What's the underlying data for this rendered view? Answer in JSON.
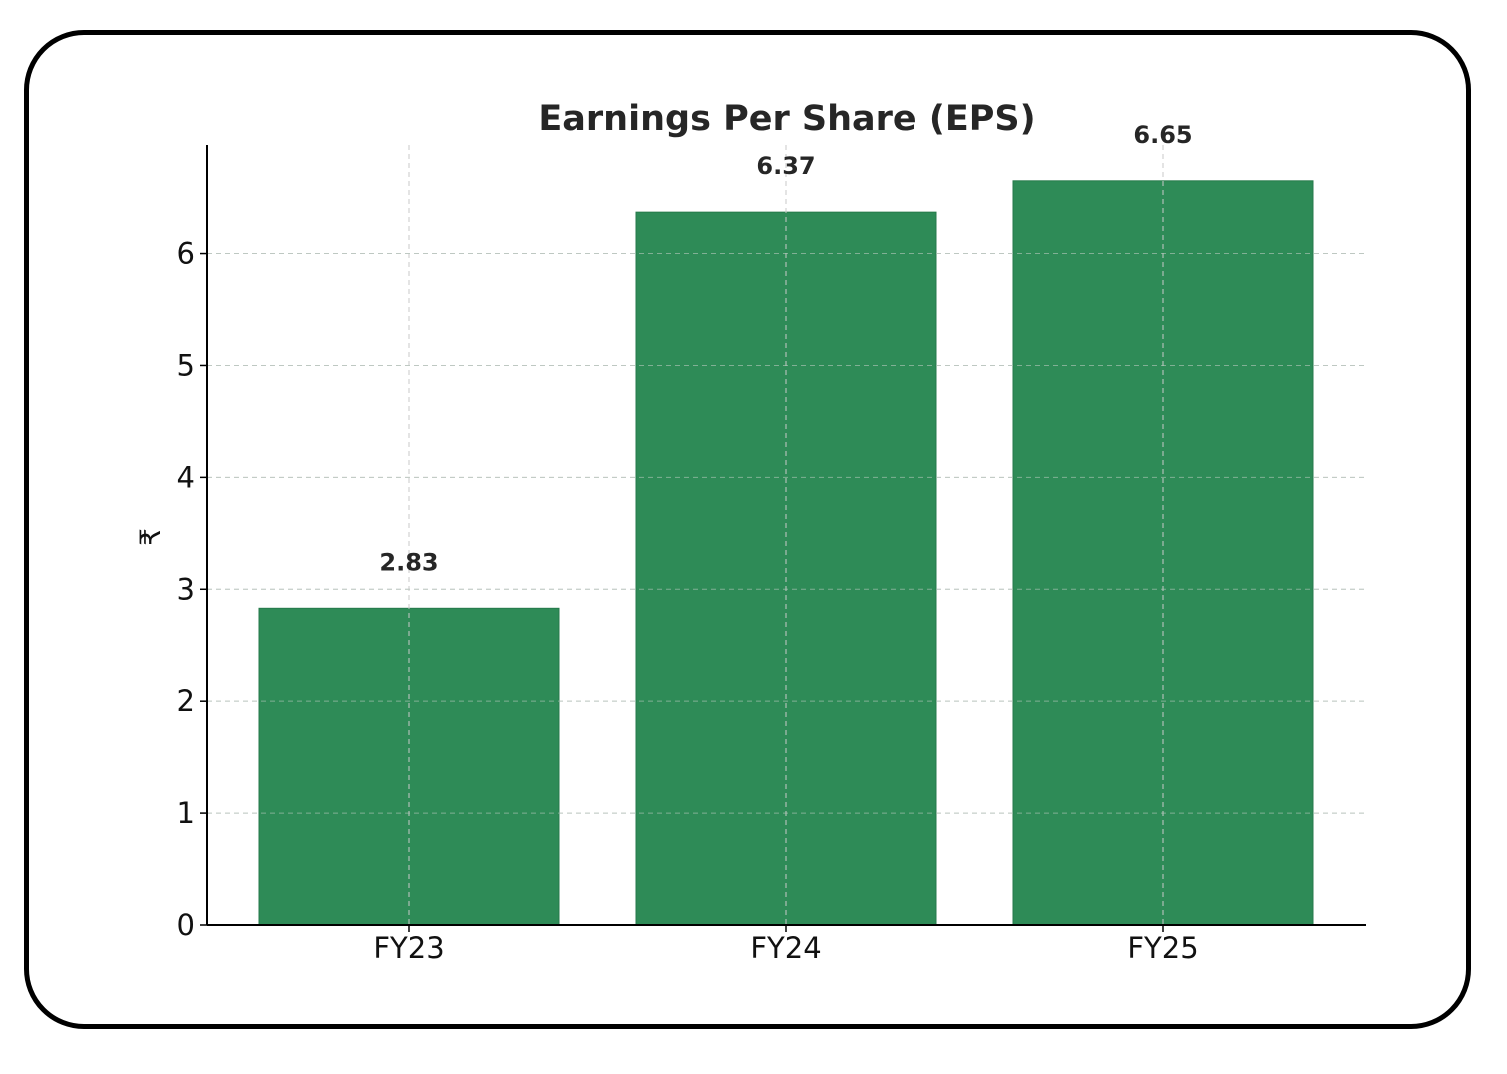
{
  "chart_data": {
    "type": "bar",
    "title": "Earnings Per Share (EPS)",
    "xlabel": "",
    "ylabel": "₹",
    "categories": [
      "FY23",
      "FY24",
      "FY25"
    ],
    "values": [
      2.83,
      6.37,
      6.65
    ],
    "value_labels": [
      "2.83",
      "6.37",
      "6.65"
    ],
    "ylim": [
      0,
      6.97
    ],
    "yticks": [
      0,
      1,
      2,
      3,
      4,
      5,
      6
    ],
    "ytick_labels": [
      "0",
      "1",
      "2",
      "3",
      "4",
      "5",
      "6"
    ],
    "grid": true,
    "bar_color": "#2e8b57"
  }
}
